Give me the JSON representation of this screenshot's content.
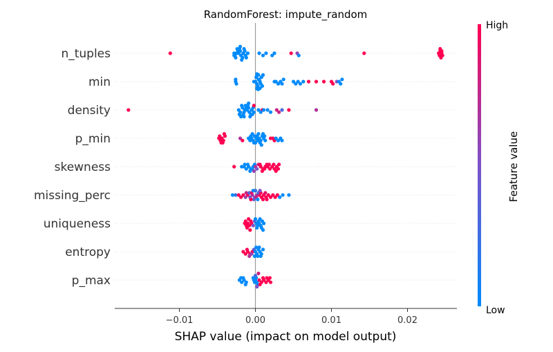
{
  "chart_data": {
    "type": "scatter",
    "title": "RandomForest: impute_random",
    "xlabel": "SHAP value (impact on model output)",
    "xlim": [
      -0.0185,
      0.0265
    ],
    "xticks": [
      -0.01,
      0.0,
      0.01,
      0.02
    ],
    "xtick_labels": [
      "−0.01",
      "0.00",
      "0.01",
      "0.02"
    ],
    "features": [
      "n_tuples",
      "min",
      "density",
      "p_min",
      "skewness",
      "missing_perc",
      "uniqueness",
      "entropy",
      "p_max"
    ],
    "colorbar": {
      "label": "Feature value",
      "high_label": "High",
      "low_label": "Low",
      "low_color": "#008bfb",
      "high_color": "#ff0052"
    },
    "series": [
      {
        "feature": "n_tuples",
        "points": [
          [
            -0.0112,
            1.0
          ],
          [
            0.0014,
            0.0
          ],
          [
            0.0143,
            1.0
          ],
          [
            0.0047,
            1.0
          ],
          [
            0.0055,
            0.6
          ],
          [
            0.0057,
            0.0
          ],
          [
            0.0025,
            0.0
          ],
          [
            0.0022,
            0.0
          ],
          [
            0.0005,
            0.0
          ],
          [
            0.001,
            0.0
          ],
          [
            -0.0028,
            0.0
          ],
          [
            -0.0025,
            0.0
          ],
          [
            -0.0022,
            0.0
          ],
          [
            -0.0019,
            0.0
          ],
          [
            -0.0016,
            0.05
          ],
          [
            -0.0013,
            0.0
          ],
          [
            -0.001,
            0.0
          ],
          [
            -0.0027,
            0.0
          ],
          [
            -0.0023,
            0.0
          ],
          [
            -0.002,
            0.0
          ],
          [
            -0.0017,
            0.0
          ],
          [
            -0.0014,
            0.0
          ],
          [
            -0.0026,
            0.0
          ],
          [
            -0.0021,
            0.0
          ],
          [
            -0.0018,
            0.0
          ],
          [
            -0.0012,
            0.0
          ],
          [
            -0.0024,
            0.0
          ],
          [
            -0.0015,
            0.0
          ],
          [
            -0.0028,
            0.0
          ],
          [
            -0.002,
            0.0
          ],
          [
            0.0241,
            1.0
          ],
          [
            0.0242,
            1.0
          ],
          [
            0.0243,
            1.0
          ],
          [
            0.0244,
            1.0
          ],
          [
            0.0245,
            1.0
          ],
          [
            0.0246,
            1.0
          ],
          [
            0.0243,
            1.0
          ],
          [
            0.0245,
            1.0
          ]
        ]
      },
      {
        "feature": "min",
        "points": [
          [
            -0.0026,
            0.0
          ],
          [
            -0.0025,
            0.0
          ],
          [
            -0.0026,
            0.0
          ],
          [
            0.0,
            0.0
          ],
          [
            0.0002,
            0.0
          ],
          [
            0.0004,
            0.0
          ],
          [
            0.0006,
            0.0
          ],
          [
            -0.0002,
            0.0
          ],
          [
            0.0003,
            0.0
          ],
          [
            0.0007,
            0.0
          ],
          [
            0.0001,
            0.0
          ],
          [
            0.0005,
            0.0
          ],
          [
            0.0009,
            0.0
          ],
          [
            0.0002,
            0.0
          ],
          [
            0.0004,
            0.0
          ],
          [
            0.0008,
            0.0
          ],
          [
            0.0003,
            0.0
          ],
          [
            0.0006,
            0.0
          ],
          [
            0.001,
            0.0
          ],
          [
            0.0002,
            0.0
          ],
          [
            0.0004,
            0.0
          ],
          [
            0.0025,
            0.0
          ],
          [
            0.0027,
            0.0
          ],
          [
            0.003,
            0.0
          ],
          [
            0.0033,
            0.0
          ],
          [
            0.0035,
            0.0
          ],
          [
            0.0037,
            0.0
          ],
          [
            0.005,
            0.0
          ],
          [
            0.0053,
            0.0
          ],
          [
            0.0056,
            0.0
          ],
          [
            0.0059,
            0.0
          ],
          [
            0.0063,
            0.0
          ],
          [
            0.007,
            1.0
          ],
          [
            0.008,
            1.0
          ],
          [
            0.009,
            1.0
          ],
          [
            0.01,
            1.0
          ],
          [
            0.0102,
            1.0
          ],
          [
            0.0107,
            0.5
          ],
          [
            0.011,
            0.0
          ],
          [
            0.0112,
            0.0
          ],
          [
            0.0114,
            0.0
          ]
        ]
      },
      {
        "feature": "density",
        "points": [
          [
            -0.0167,
            1.0
          ],
          [
            -0.0022,
            0.0
          ],
          [
            -0.002,
            0.0
          ],
          [
            -0.0017,
            0.0
          ],
          [
            -0.0014,
            0.0
          ],
          [
            -0.0011,
            0.0
          ],
          [
            -0.0008,
            0.0
          ],
          [
            -0.0005,
            0.0
          ],
          [
            -0.0002,
            0.0
          ],
          [
            -0.0021,
            0.0
          ],
          [
            -0.0018,
            0.0
          ],
          [
            -0.0015,
            0.0
          ],
          [
            -0.0012,
            0.0
          ],
          [
            -0.0009,
            0.0
          ],
          [
            -0.0006,
            0.0
          ],
          [
            -0.0003,
            0.0
          ],
          [
            -0.0019,
            0.0
          ],
          [
            -0.0016,
            0.0
          ],
          [
            -0.0013,
            0.0
          ],
          [
            -0.001,
            0.0
          ],
          [
            -0.0007,
            0.0
          ],
          [
            -0.0004,
            0.0
          ],
          [
            -0.0015,
            0.0
          ],
          [
            -0.0009,
            0.0
          ],
          [
            -0.0002,
            1.0
          ],
          [
            0.0009,
            1.0
          ],
          [
            0.0004,
            0.0
          ],
          [
            0.0007,
            0.0
          ],
          [
            0.0011,
            0.0
          ],
          [
            0.0016,
            0.0
          ],
          [
            0.002,
            0.0
          ],
          [
            0.0028,
            0.8
          ],
          [
            0.0031,
            0.8
          ],
          [
            0.0035,
            0.3
          ],
          [
            0.0044,
            1.0
          ],
          [
            0.008,
            0.7
          ]
        ]
      },
      {
        "feature": "p_min",
        "points": [
          [
            -0.0048,
            1.0
          ],
          [
            -0.0046,
            1.0
          ],
          [
            -0.0044,
            1.0
          ],
          [
            -0.0042,
            1.0
          ],
          [
            -0.004,
            1.0
          ],
          [
            -0.0047,
            1.0
          ],
          [
            -0.0043,
            1.0
          ],
          [
            -0.0045,
            1.0
          ],
          [
            -0.0041,
            1.0
          ],
          [
            -0.002,
            0.7
          ],
          [
            -0.0017,
            1.0
          ],
          [
            -0.0009,
            0.0
          ],
          [
            -0.0007,
            0.0
          ],
          [
            -0.0005,
            0.0
          ],
          [
            -0.0003,
            0.0
          ],
          [
            -0.0001,
            0.0
          ],
          [
            0.0001,
            0.0
          ],
          [
            0.0003,
            0.0
          ],
          [
            0.0005,
            0.0
          ],
          [
            0.0007,
            0.0
          ],
          [
            0.0009,
            0.0
          ],
          [
            0.0011,
            0.0
          ],
          [
            0.0013,
            0.0
          ],
          [
            -0.0006,
            0.0
          ],
          [
            -0.0002,
            0.0
          ],
          [
            0.0002,
            0.0
          ],
          [
            0.0006,
            0.0
          ],
          [
            0.001,
            0.0
          ],
          [
            -0.0004,
            0.0
          ],
          [
            0.0,
            0.0
          ],
          [
            0.0004,
            0.0
          ],
          [
            0.0008,
            0.0
          ],
          [
            0.0012,
            0.0
          ],
          [
            0.002,
            1.0
          ],
          [
            0.0023,
            1.0
          ],
          [
            0.0025,
            1.0
          ],
          [
            0.0027,
            0.0
          ],
          [
            0.003,
            0.0
          ],
          [
            0.0033,
            0.0
          ],
          [
            0.0035,
            0.0
          ]
        ]
      },
      {
        "feature": "skewness",
        "points": [
          [
            -0.0028,
            1.0
          ],
          [
            -0.0018,
            0.0
          ],
          [
            -0.0015,
            0.0
          ],
          [
            -0.0012,
            0.0
          ],
          [
            -0.0009,
            0.0
          ],
          [
            -0.0006,
            0.0
          ],
          [
            -0.0003,
            0.0
          ],
          [
            -0.0014,
            0.0
          ],
          [
            -0.001,
            0.0
          ],
          [
            -0.0007,
            0.0
          ],
          [
            -0.0004,
            0.0
          ],
          [
            -0.0001,
            0.0
          ],
          [
            0.0,
            0.7
          ],
          [
            0.0002,
            0.5
          ],
          [
            -0.0002,
            0.6
          ],
          [
            0.0004,
            0.8
          ],
          [
            0.0007,
            1.0
          ],
          [
            0.001,
            1.0
          ],
          [
            0.0013,
            1.0
          ],
          [
            0.0016,
            1.0
          ],
          [
            0.0019,
            1.0
          ],
          [
            0.0006,
            1.0
          ],
          [
            0.0009,
            1.0
          ],
          [
            0.0012,
            1.0
          ],
          [
            0.0015,
            1.0
          ],
          [
            0.0018,
            1.0
          ],
          [
            0.0022,
            1.0
          ],
          [
            0.0025,
            1.0
          ],
          [
            0.0028,
            1.0
          ],
          [
            0.003,
            1.0
          ],
          [
            0.0031,
            1.0
          ],
          [
            0.0024,
            1.0
          ],
          [
            0.0027,
            1.0
          ]
        ]
      },
      {
        "feature": "missing_perc",
        "points": [
          [
            -0.003,
            0.0
          ],
          [
            -0.0026,
            0.2
          ],
          [
            -0.0022,
            1.0
          ],
          [
            -0.0019,
            1.0
          ],
          [
            -0.0016,
            1.0
          ],
          [
            -0.0013,
            0.6
          ],
          [
            -0.001,
            1.0
          ],
          [
            -0.0007,
            0.4
          ],
          [
            -0.0004,
            0.7
          ],
          [
            -0.0001,
            0.5
          ],
          [
            0.0002,
            0.6
          ],
          [
            0.0005,
            1.0
          ],
          [
            0.0008,
            1.0
          ],
          [
            0.0011,
            1.0
          ],
          [
            0.0014,
            1.0
          ],
          [
            0.0017,
            1.0
          ],
          [
            0.002,
            1.0
          ],
          [
            0.0023,
            1.0
          ],
          [
            0.0026,
            1.0
          ],
          [
            0.0029,
            1.0
          ],
          [
            0.0032,
            0.0
          ],
          [
            0.0036,
            0.0
          ],
          [
            -0.0012,
            0.8
          ],
          [
            -0.0008,
            0.3
          ],
          [
            -0.0005,
            0.9
          ],
          [
            -0.0002,
            0.4
          ],
          [
            0.0001,
            0.8
          ],
          [
            0.0004,
            0.3
          ],
          [
            0.0007,
            1.0
          ],
          [
            0.001,
            1.0
          ],
          [
            0.0013,
            0.9
          ],
          [
            0.0003,
            0.0
          ],
          [
            -0.0003,
            0.0
          ],
          [
            0.0,
            0.2
          ],
          [
            0.0044,
            0.0
          ],
          [
            -0.0006,
            1.0
          ],
          [
            0.0006,
            0.5
          ],
          [
            0.0015,
            1.0
          ]
        ]
      },
      {
        "feature": "uniqueness",
        "points": [
          [
            -0.0014,
            1.0
          ],
          [
            -0.0012,
            1.0
          ],
          [
            -0.001,
            1.0
          ],
          [
            -0.0008,
            1.0
          ],
          [
            -0.0006,
            1.0
          ],
          [
            -0.0013,
            1.0
          ],
          [
            -0.0011,
            1.0
          ],
          [
            -0.0009,
            1.0
          ],
          [
            -0.0007,
            1.0
          ],
          [
            -0.0005,
            1.0
          ],
          [
            -0.0003,
            0.5
          ],
          [
            -0.0001,
            0.4
          ],
          [
            0.0001,
            0.0
          ],
          [
            0.0003,
            0.0
          ],
          [
            0.0005,
            0.0
          ],
          [
            0.0007,
            0.0
          ],
          [
            0.0009,
            0.0
          ],
          [
            0.0011,
            0.0
          ],
          [
            0.0004,
            0.0
          ],
          [
            0.0008,
            0.0
          ],
          [
            0.0002,
            0.0
          ],
          [
            0.0006,
            0.0
          ],
          [
            0.0,
            0.0
          ],
          [
            0.001,
            0.0
          ]
        ]
      },
      {
        "feature": "entropy",
        "points": [
          [
            -0.0016,
            1.0
          ],
          [
            -0.0013,
            1.0
          ],
          [
            -0.001,
            1.0
          ],
          [
            -0.0007,
            1.0
          ],
          [
            -0.0004,
            1.0
          ],
          [
            -0.0011,
            1.0
          ],
          [
            -0.0008,
            0.7
          ],
          [
            -0.0005,
            0.6
          ],
          [
            -0.0002,
            0.4
          ],
          [
            0.0,
            0.0
          ],
          [
            0.0002,
            0.0
          ],
          [
            0.0004,
            0.0
          ],
          [
            0.0006,
            0.0
          ],
          [
            0.0008,
            0.0
          ],
          [
            0.001,
            0.0
          ],
          [
            0.0003,
            0.0
          ],
          [
            0.0007,
            0.0
          ],
          [
            -0.0001,
            0.0
          ],
          [
            0.0001,
            0.0
          ],
          [
            0.0005,
            0.0
          ]
        ]
      },
      {
        "feature": "p_max",
        "points": [
          [
            -0.0021,
            0.0
          ],
          [
            -0.0018,
            0.0
          ],
          [
            -0.0015,
            0.0
          ],
          [
            -0.0012,
            0.0
          ],
          [
            -0.0019,
            0.0
          ],
          [
            -0.0016,
            0.0
          ],
          [
            -0.0013,
            0.0
          ],
          [
            -0.0002,
            0.0
          ],
          [
            0.0,
            0.0
          ],
          [
            0.0002,
            0.0
          ],
          [
            -0.0001,
            0.0
          ],
          [
            0.0001,
            0.0
          ],
          [
            -0.0003,
            0.0
          ],
          [
            0.0003,
            0.0
          ],
          [
            0.0,
            0.3
          ],
          [
            0.0002,
            0.5
          ],
          [
            0.0005,
            1.0
          ],
          [
            0.0008,
            1.0
          ],
          [
            0.0011,
            1.0
          ],
          [
            0.0014,
            1.0
          ],
          [
            0.0017,
            1.0
          ],
          [
            0.002,
            1.0
          ],
          [
            0.001,
            1.0
          ],
          [
            0.0015,
            1.0
          ],
          [
            0.0019,
            1.0
          ],
          [
            0.0006,
            1.0
          ],
          [
            0.0004,
            0.8
          ]
        ]
      }
    ]
  }
}
